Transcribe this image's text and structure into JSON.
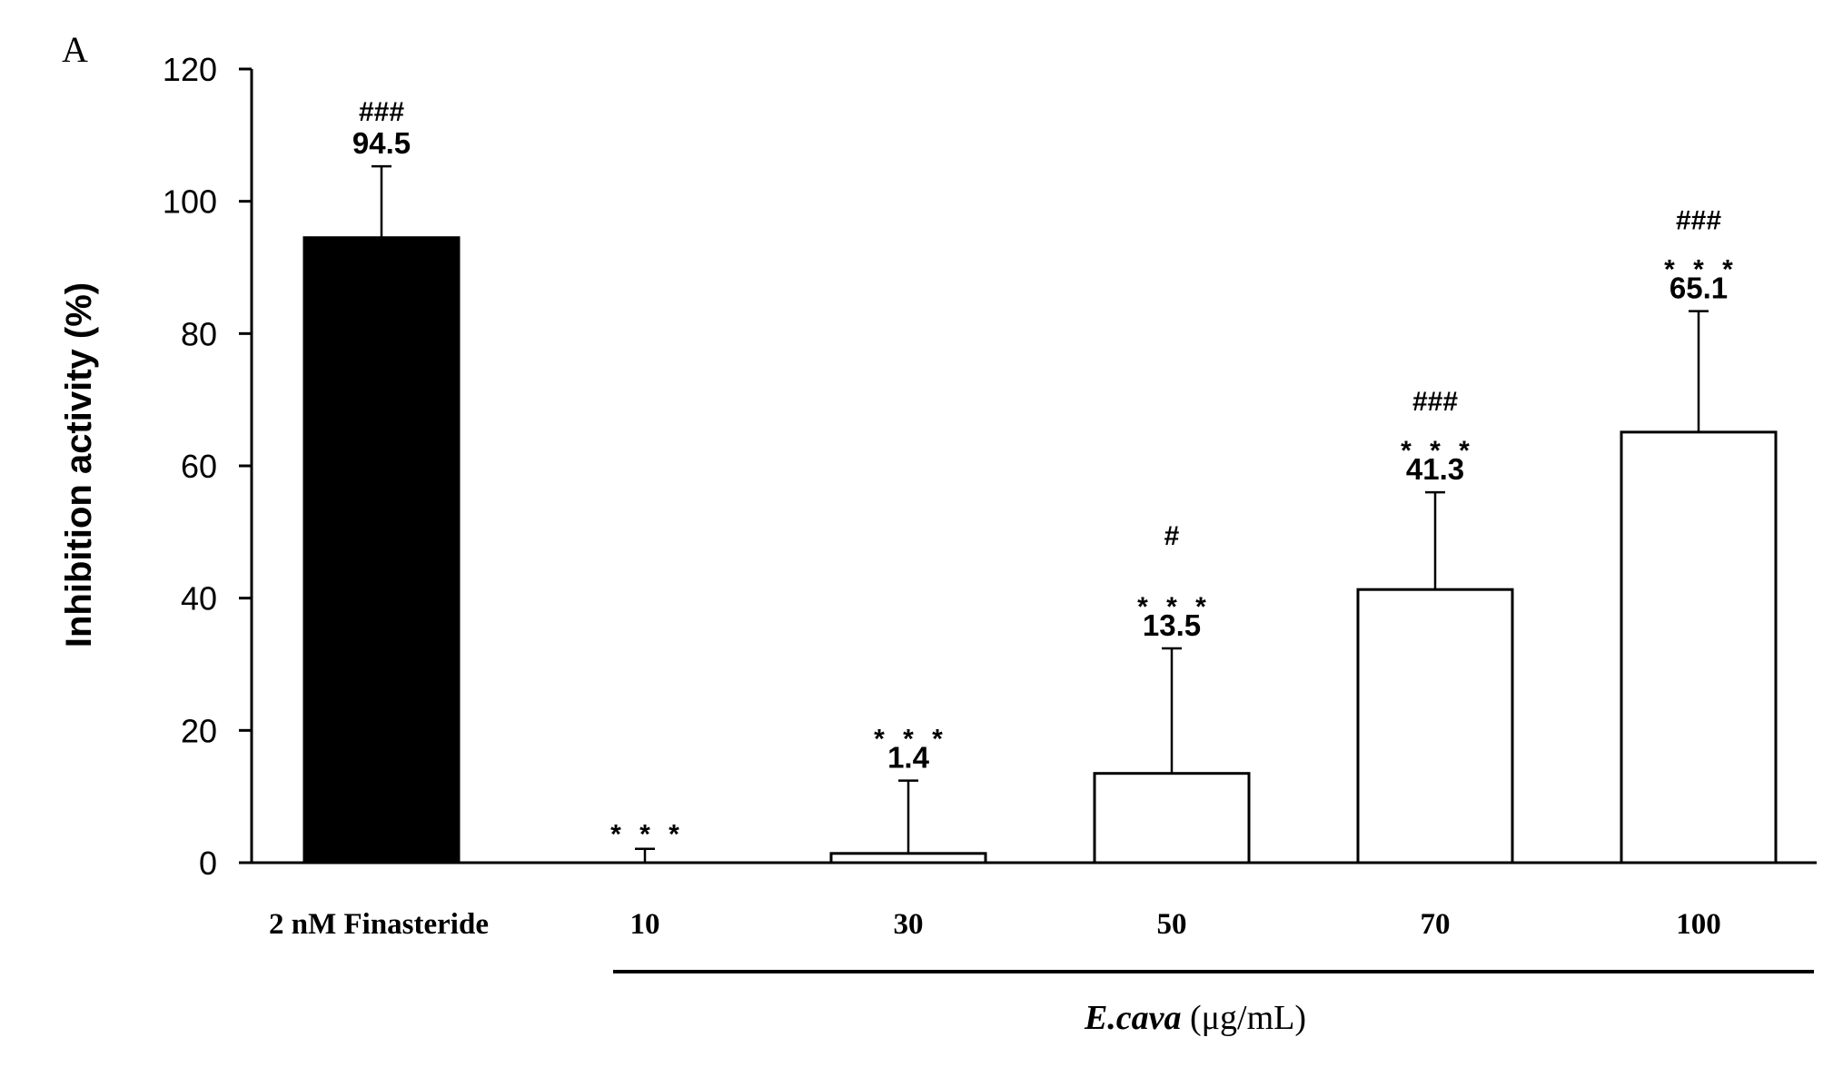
{
  "chart_data": {
    "type": "bar",
    "panel_label": "A",
    "ylabel": "Inhibition activity (%)",
    "ylim": [
      0,
      120
    ],
    "yticks": [
      "0",
      "20",
      "40",
      "60",
      "80",
      "100",
      "120"
    ],
    "group_label_italic": "E.cava",
    "group_label_unit": " (μg/mL)",
    "categories": [
      "2 nM Finasteride",
      "10",
      "30",
      "50",
      "70",
      "100"
    ],
    "values": [
      94.5,
      0,
      1.4,
      13.5,
      41.3,
      65.1
    ],
    "errors": [
      10.8,
      2.1,
      11.0,
      18.9,
      14.7,
      18.3
    ],
    "value_labels": [
      "94.5",
      "",
      "1.4",
      "13.5",
      "41.3",
      "65.1"
    ],
    "stars": [
      "",
      "* * *",
      "* * *",
      "* * *",
      "* * *",
      "* * *"
    ],
    "hashes": [
      "###",
      "",
      "",
      "#",
      "###",
      "###"
    ],
    "fills": [
      "#000000",
      "#ffffff",
      "#ffffff",
      "#ffffff",
      "#ffffff",
      "#ffffff"
    ]
  }
}
